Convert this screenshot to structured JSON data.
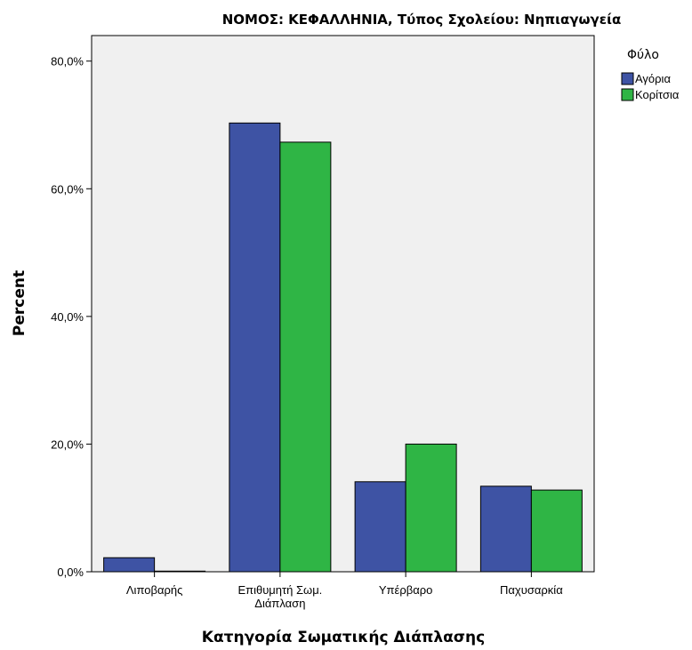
{
  "chart_data": {
    "type": "bar",
    "title": "ΝΟΜΟΣ: ΚΕΦΑΛΛΗΝΙΑ, Τύπος Σχολείου: Νηπιαγωγεία",
    "xlabel": "Κατηγορία Σωματικής Διάπλασης",
    "ylabel": "Percent",
    "categories": [
      [
        "Λιποβαρής"
      ],
      [
        "Επιθυμητή Σωμ.",
        "Διάπλαση"
      ],
      [
        "Υπέρβαρο"
      ],
      [
        "Παχυσαρκία"
      ]
    ],
    "series": [
      {
        "name": "Αγόρια",
        "color": "#3e53a4",
        "values": [
          2.2,
          70.3,
          14.1,
          13.4
        ]
      },
      {
        "name": "Κορίτσια",
        "color": "#2fb545",
        "values": [
          0.1,
          67.3,
          20.0,
          12.8
        ]
      }
    ],
    "ylim": [
      0,
      84
    ],
    "yticks": [
      0,
      20,
      40,
      60,
      80
    ],
    "ytick_labels": [
      "0,0%",
      "20,0%",
      "40,0%",
      "60,0%",
      "80,0%"
    ],
    "legend": {
      "title": "Φύλο",
      "position": "right"
    },
    "plot_background": "#f0f0f0",
    "grid": false
  }
}
